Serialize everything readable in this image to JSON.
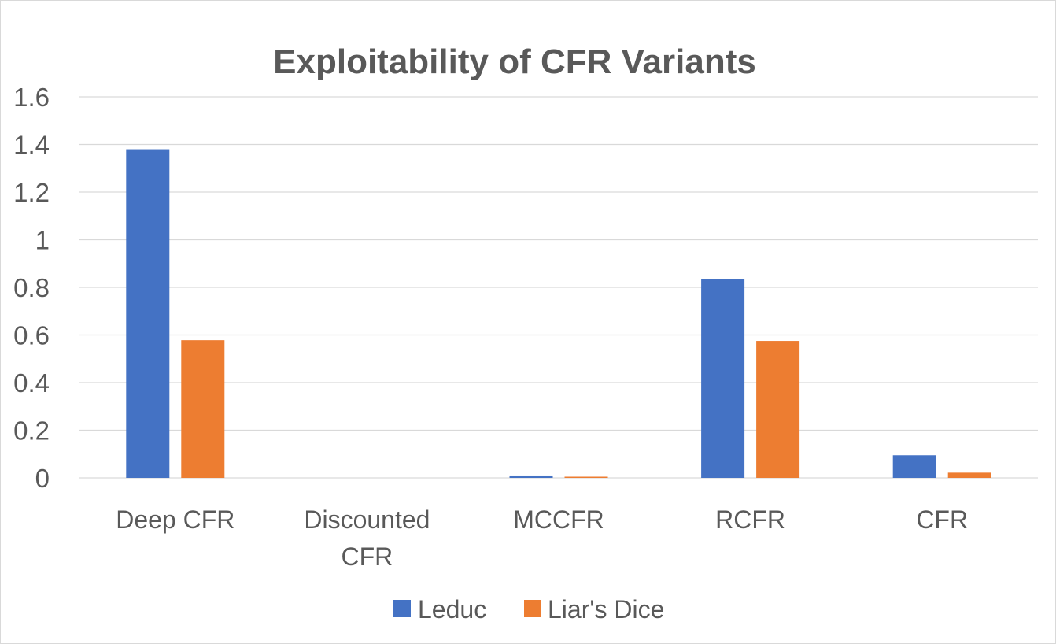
{
  "chart_data": {
    "type": "bar",
    "title": "Exploitability of CFR Variants",
    "xlabel": "",
    "ylabel": "",
    "categories": [
      [
        "Deep CFR"
      ],
      [
        "Discounted",
        "CFR"
      ],
      [
        "MCCFR"
      ],
      [
        "RCFR"
      ],
      [
        "CFR"
      ]
    ],
    "series": [
      {
        "name": "Leduc",
        "color": "#4472C4",
        "values": [
          1.38,
          0,
          0.01,
          0.835,
          0.095
        ]
      },
      {
        "name": "Liar's Dice",
        "color": "#ED7D31",
        "values": [
          0.578,
          0,
          0.005,
          0.575,
          0.022
        ]
      }
    ],
    "ylim": [
      0,
      1.6
    ],
    "yticks": [
      "0",
      "0.2",
      "0.4",
      "0.6",
      "0.8",
      "1",
      "1.2",
      "1.4",
      "1.6"
    ],
    "ytick_values": [
      0,
      0.2,
      0.4,
      0.6,
      0.8,
      1,
      1.2,
      1.4,
      1.6
    ],
    "grid": true,
    "legend_position": "bottom"
  }
}
